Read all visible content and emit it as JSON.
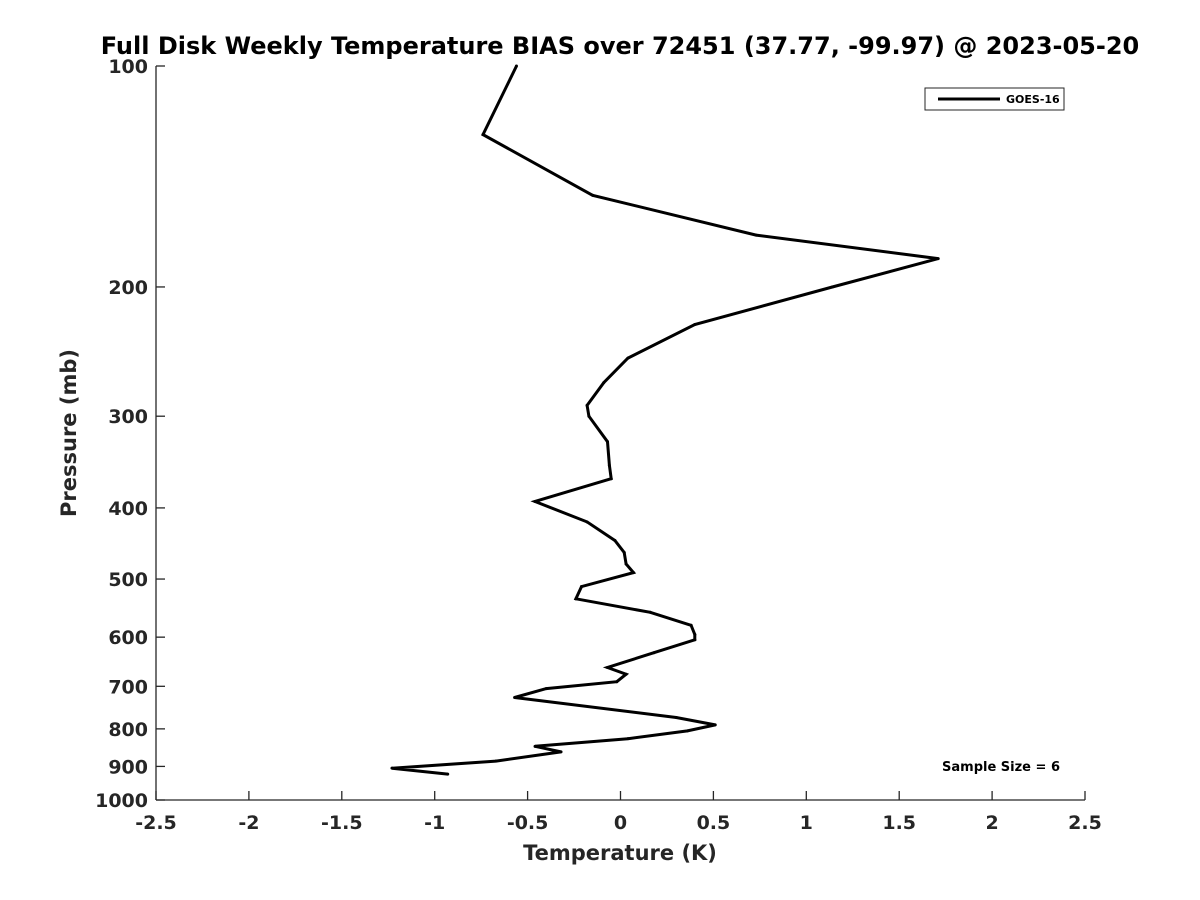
{
  "chart_data": {
    "type": "line",
    "title": "Full Disk Weekly Temperature BIAS over 72451 (37.77, -99.97) @ 2023-05-20",
    "xlabel": "Temperature (K)",
    "ylabel": "Pressure (mb)",
    "xlim": [
      -2.5,
      2.5
    ],
    "ylim": [
      1000,
      100
    ],
    "y_scale": "log",
    "x_ticks": [
      -2.5,
      -2,
      -1.5,
      -1,
      -0.5,
      0,
      0.5,
      1,
      1.5,
      2,
      2.5
    ],
    "x_tick_labels": [
      "-2.5",
      "-2",
      "-1.5",
      "-1",
      "-0.5",
      "0",
      "0.5",
      "1",
      "1.5",
      "2",
      "2.5"
    ],
    "y_ticks": [
      100,
      200,
      300,
      400,
      500,
      600,
      700,
      800,
      900,
      1000
    ],
    "y_tick_labels": [
      "100",
      "200",
      "300",
      "400",
      "500",
      "600",
      "700",
      "800",
      "900",
      "1000"
    ],
    "grid": false,
    "legend": "top-right",
    "series": [
      {
        "name": "GOES-16",
        "color": "#000000",
        "points": [
          {
            "x": -0.56,
            "p": 100
          },
          {
            "x": -0.74,
            "p": 124
          },
          {
            "x": -0.15,
            "p": 150
          },
          {
            "x": 0.73,
            "p": 170
          },
          {
            "x": 1.71,
            "p": 183
          },
          {
            "x": 1.14,
            "p": 200
          },
          {
            "x": 0.4,
            "p": 225
          },
          {
            "x": 0.04,
            "p": 250
          },
          {
            "x": -0.09,
            "p": 270
          },
          {
            "x": -0.18,
            "p": 290
          },
          {
            "x": -0.17,
            "p": 300
          },
          {
            "x": -0.07,
            "p": 325
          },
          {
            "x": -0.06,
            "p": 350
          },
          {
            "x": -0.05,
            "p": 365
          },
          {
            "x": -0.46,
            "p": 392
          },
          {
            "x": -0.18,
            "p": 418
          },
          {
            "x": -0.03,
            "p": 443
          },
          {
            "x": 0.02,
            "p": 460
          },
          {
            "x": 0.03,
            "p": 477
          },
          {
            "x": 0.07,
            "p": 490
          },
          {
            "x": -0.21,
            "p": 512
          },
          {
            "x": -0.24,
            "p": 532
          },
          {
            "x": 0.16,
            "p": 555
          },
          {
            "x": 0.38,
            "p": 578
          },
          {
            "x": 0.4,
            "p": 595
          },
          {
            "x": 0.4,
            "p": 605
          },
          {
            "x": 0.18,
            "p": 630
          },
          {
            "x": -0.07,
            "p": 660
          },
          {
            "x": 0.03,
            "p": 674
          },
          {
            "x": -0.02,
            "p": 690
          },
          {
            "x": -0.4,
            "p": 705
          },
          {
            "x": -0.57,
            "p": 725
          },
          {
            "x": 0.3,
            "p": 772
          },
          {
            "x": 0.51,
            "p": 790
          },
          {
            "x": 0.36,
            "p": 805
          },
          {
            "x": 0.04,
            "p": 825
          },
          {
            "x": -0.46,
            "p": 845
          },
          {
            "x": -0.32,
            "p": 860
          },
          {
            "x": -0.67,
            "p": 885
          },
          {
            "x": -1.23,
            "p": 905
          },
          {
            "x": -0.93,
            "p": 922
          }
        ]
      }
    ],
    "annotation": "Sample Size = 6"
  }
}
